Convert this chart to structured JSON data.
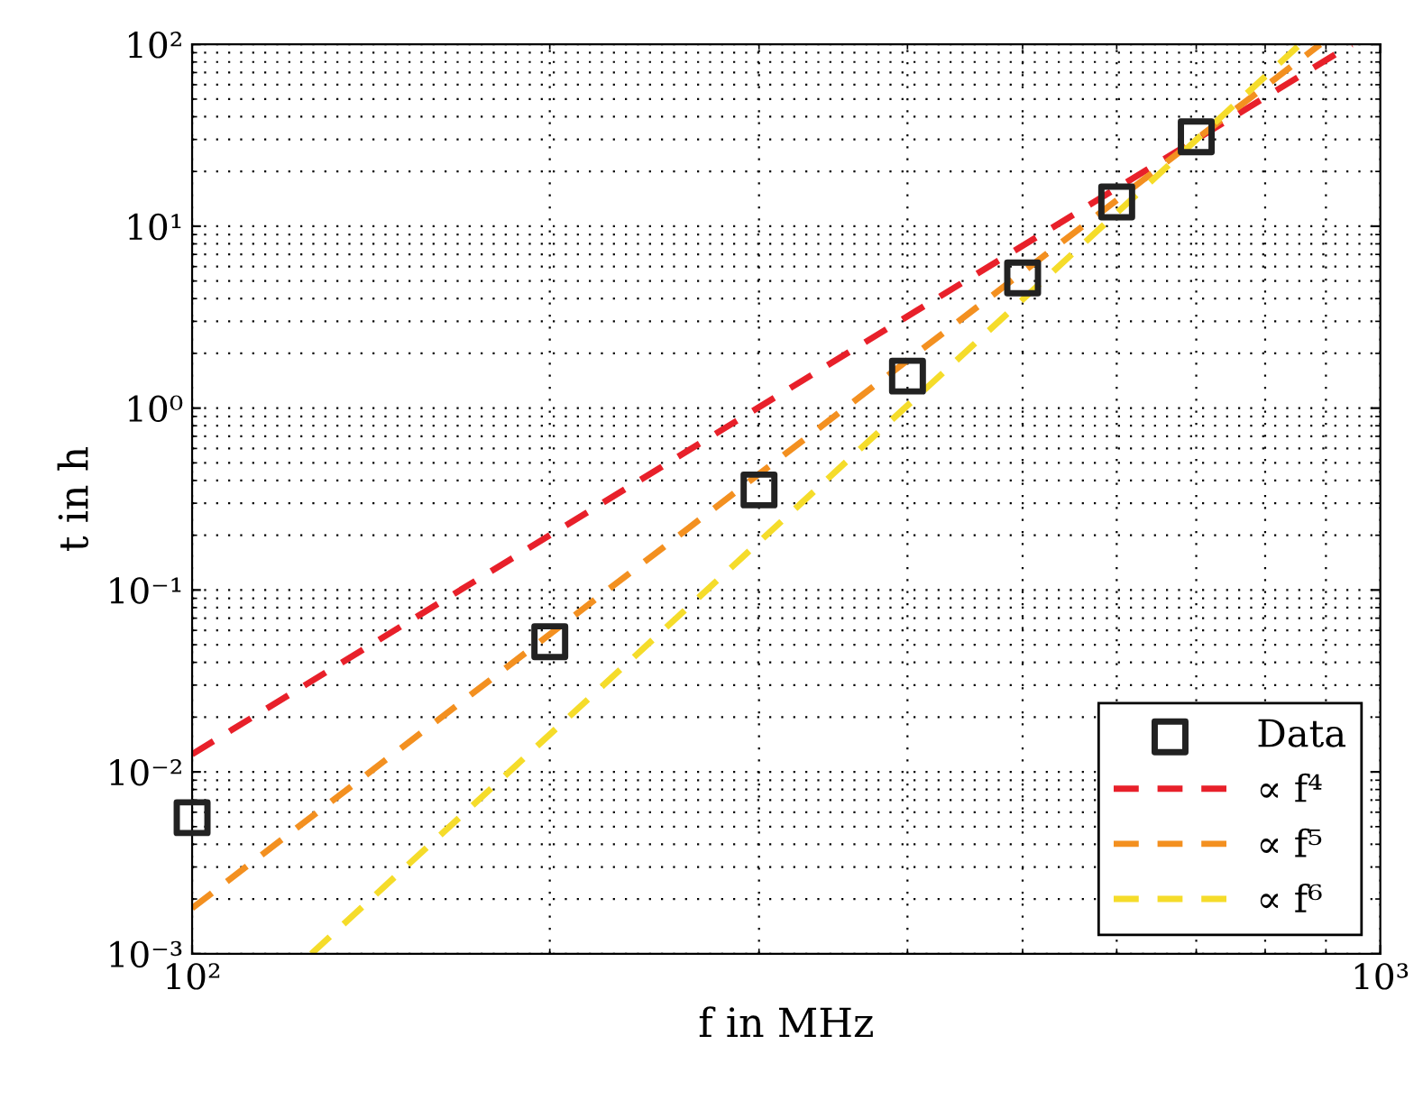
{
  "chart_data": {
    "type": "scatter",
    "log": "xy",
    "grid": true,
    "legend": "bottom right",
    "xlabel": "f in MHz",
    "ylabel": "t in h",
    "xlim": [
      100,
      1000
    ],
    "xticks": [
      {
        "value": 100,
        "label": "10²"
      },
      {
        "value": 1000,
        "label": "10³"
      }
    ],
    "ylim": [
      0.001,
      100
    ],
    "yticks": [
      {
        "value": 0.001,
        "label": "10⁻³"
      },
      {
        "value": 0.01,
        "label": "10⁻²"
      },
      {
        "value": 0.1,
        "label": "10⁻¹"
      },
      {
        "value": 1,
        "label": "10⁰"
      },
      {
        "value": 10,
        "label": "10¹"
      },
      {
        "value": 100,
        "label": "10²"
      }
    ],
    "series": [
      {
        "name": "Data",
        "marker": "square",
        "color": "#222222",
        "x": [
          100,
          200,
          300,
          400,
          500,
          600,
          700
        ],
        "values": [
          0.0056,
          0.052,
          0.355,
          1.5,
          5.2,
          13.6,
          31
        ]
      },
      {
        "name": "∝ f⁴",
        "type": "line",
        "line_style": "dashed",
        "color": "#e8202a",
        "x": [
          100,
          946
        ],
        "values": [
          0.0125,
          100
        ]
      },
      {
        "name": "∝ f⁵",
        "type": "line",
        "line_style": "dashed",
        "color": "#f39020",
        "x": [
          100,
          890
        ],
        "values": [
          0.00178,
          100
        ]
      },
      {
        "name": "∝ f⁶",
        "type": "line",
        "line_style": "dashed",
        "color": "#f5dc2a",
        "x": [
          126,
          856
        ],
        "values": [
          0.001,
          100
        ]
      }
    ]
  }
}
